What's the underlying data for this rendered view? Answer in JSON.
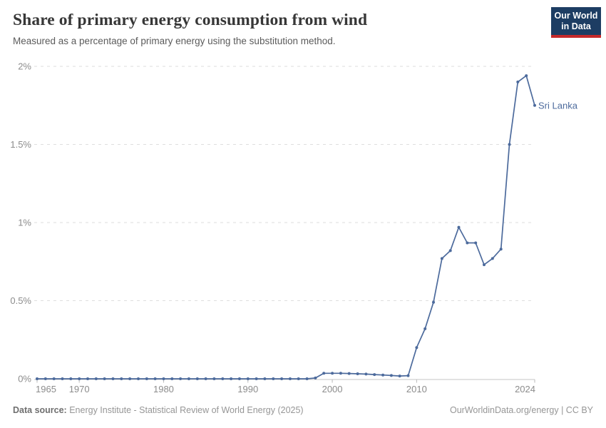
{
  "header": {
    "title": "Share of primary energy consumption from wind",
    "subtitle": "Measured as a percentage of primary energy using the substitution method.",
    "logo": {
      "line1": "Our World",
      "line2": "in Data",
      "bg_color": "#1d3d63",
      "accent_color": "#c5292a"
    }
  },
  "chart_data": {
    "type": "line",
    "title": "Share of primary energy consumption from wind",
    "xlabel": "",
    "ylabel": "",
    "xlim": [
      1965,
      2024
    ],
    "ylim": [
      0,
      2
    ],
    "x_ticks": [
      1965,
      1970,
      1980,
      1990,
      2000,
      2010,
      2024
    ],
    "y_ticks": [
      0,
      0.5,
      1,
      1.5,
      2
    ],
    "y_tick_labels": [
      "0%",
      "0.5%",
      "1%",
      "1.5%",
      "2%"
    ],
    "grid": "horizontal-dashed",
    "legend_position": "end-of-line",
    "series": [
      {
        "name": "Sri Lanka",
        "color": "#4c6a9c",
        "points": [
          [
            1965,
            0
          ],
          [
            1966,
            0
          ],
          [
            1967,
            0
          ],
          [
            1968,
            0
          ],
          [
            1969,
            0
          ],
          [
            1970,
            0
          ],
          [
            1971,
            0
          ],
          [
            1972,
            0
          ],
          [
            1973,
            0
          ],
          [
            1974,
            0
          ],
          [
            1975,
            0
          ],
          [
            1976,
            0
          ],
          [
            1977,
            0
          ],
          [
            1978,
            0
          ],
          [
            1979,
            0
          ],
          [
            1980,
            0
          ],
          [
            1981,
            0
          ],
          [
            1982,
            0
          ],
          [
            1983,
            0
          ],
          [
            1984,
            0
          ],
          [
            1985,
            0
          ],
          [
            1986,
            0
          ],
          [
            1987,
            0
          ],
          [
            1988,
            0
          ],
          [
            1989,
            0
          ],
          [
            1990,
            0
          ],
          [
            1991,
            0
          ],
          [
            1992,
            0
          ],
          [
            1993,
            0
          ],
          [
            1994,
            0
          ],
          [
            1995,
            0
          ],
          [
            1996,
            0
          ],
          [
            1997,
            0
          ],
          [
            1998,
            0.005
          ],
          [
            1999,
            0.035
          ],
          [
            2000,
            0.035
          ],
          [
            2001,
            0.035
          ],
          [
            2002,
            0.034
          ],
          [
            2003,
            0.032
          ],
          [
            2004,
            0.03
          ],
          [
            2005,
            0.027
          ],
          [
            2006,
            0.024
          ],
          [
            2007,
            0.021
          ],
          [
            2008,
            0.018
          ],
          [
            2009,
            0.02
          ],
          [
            2010,
            0.2
          ],
          [
            2011,
            0.32
          ],
          [
            2012,
            0.49
          ],
          [
            2013,
            0.77
          ],
          [
            2014,
            0.82
          ],
          [
            2015,
            0.97
          ],
          [
            2016,
            0.87
          ],
          [
            2017,
            0.87
          ],
          [
            2018,
            0.73
          ],
          [
            2019,
            0.77
          ],
          [
            2020,
            0.83
          ],
          [
            2021,
            1.5
          ],
          [
            2022,
            1.9
          ],
          [
            2023,
            1.94
          ],
          [
            2024,
            1.75
          ]
        ]
      }
    ]
  },
  "footer": {
    "source_label": "Data source:",
    "source_text": " Energy Institute - Statistical Review of World Energy (2025)",
    "attribution": "OurWorldinData.org/energy | CC BY"
  }
}
